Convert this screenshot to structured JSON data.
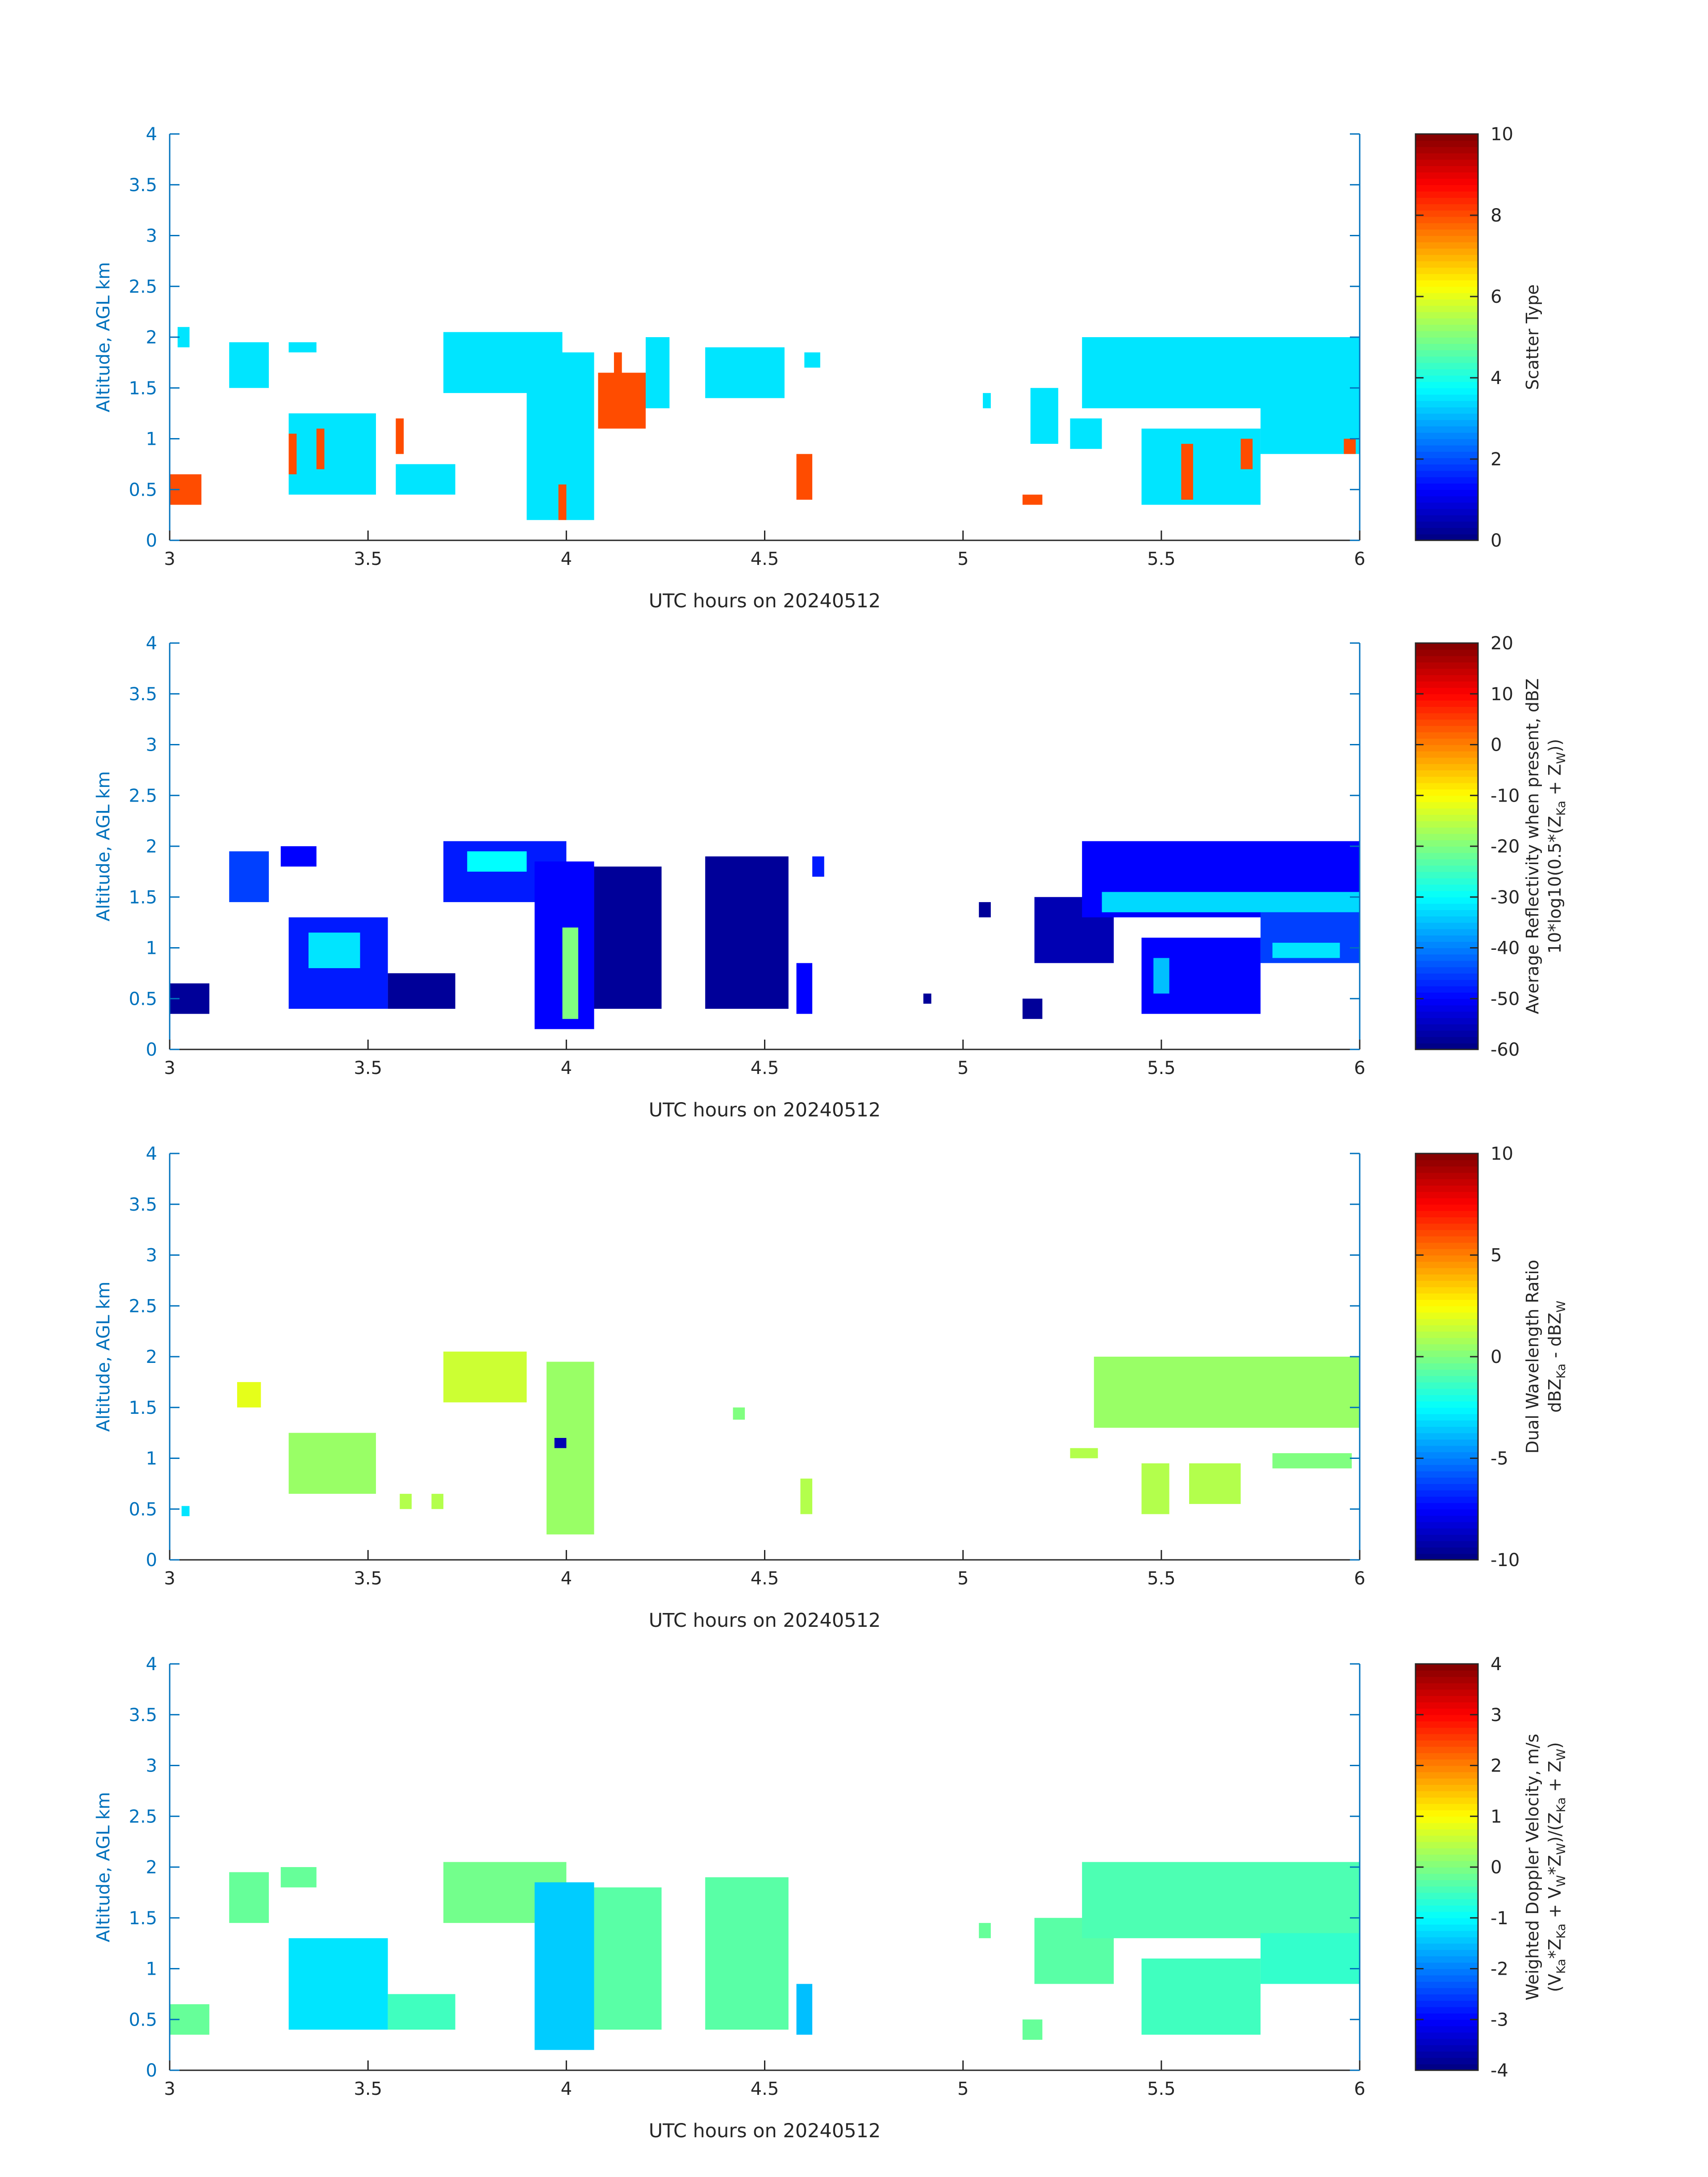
{
  "chart_data": [
    {
      "type": "heatmap",
      "panel": "scatter-type",
      "xlabel": "UTC hours on 20240512",
      "ylabel": "Altitude, AGL km",
      "xlim": [
        3,
        6
      ],
      "ylim": [
        0,
        4
      ],
      "xticks": [
        "3",
        "3.5",
        "4",
        "4.5",
        "5",
        "5.5",
        "6"
      ],
      "yticks": [
        "0",
        "0.5",
        "1",
        "1.5",
        "2",
        "2.5",
        "3",
        "3.5",
        "4"
      ],
      "colorbar": {
        "label": [
          "Scatter Type"
        ],
        "range": [
          0,
          10
        ],
        "ticks": [
          "0",
          "2",
          "4",
          "6",
          "8",
          "10"
        ]
      },
      "regions": [
        {
          "x": [
            3.0,
            3.08
          ],
          "y": [
            0.35,
            0.65
          ],
          "value": 8
        },
        {
          "x": [
            3.02,
            3.05
          ],
          "y": [
            1.9,
            2.1
          ],
          "value": 3.5
        },
        {
          "x": [
            3.15,
            3.25
          ],
          "y": [
            1.5,
            1.95
          ],
          "value": 3.5
        },
        {
          "x": [
            3.3,
            3.37
          ],
          "y": [
            1.85,
            1.95
          ],
          "value": 3.5
        },
        {
          "x": [
            3.3,
            3.52
          ],
          "y": [
            0.45,
            1.25
          ],
          "value": 3.5
        },
        {
          "x": [
            3.3,
            3.32
          ],
          "y": [
            0.65,
            1.05
          ],
          "value": 8
        },
        {
          "x": [
            3.37,
            3.39
          ],
          "y": [
            0.7,
            1.1
          ],
          "value": 8
        },
        {
          "x": [
            3.57,
            3.72
          ],
          "y": [
            0.45,
            0.75
          ],
          "value": 3.5
        },
        {
          "x": [
            3.57,
            3.59
          ],
          "y": [
            0.85,
            1.2
          ],
          "value": 8
        },
        {
          "x": [
            3.69,
            3.99
          ],
          "y": [
            1.45,
            2.05
          ],
          "value": 3.5
        },
        {
          "x": [
            3.9,
            4.07
          ],
          "y": [
            0.2,
            1.85
          ],
          "value": 3.5
        },
        {
          "x": [
            3.98,
            4.0
          ],
          "y": [
            0.2,
            0.55
          ],
          "value": 8
        },
        {
          "x": [
            4.12,
            4.14
          ],
          "y": [
            1.55,
            1.85
          ],
          "value": 8
        },
        {
          "x": [
            4.08,
            4.2
          ],
          "y": [
            1.1,
            1.65
          ],
          "value": 8
        },
        {
          "x": [
            4.2,
            4.26
          ],
          "y": [
            1.3,
            2.0
          ],
          "value": 3.5
        },
        {
          "x": [
            4.35,
            4.55
          ],
          "y": [
            1.4,
            1.9
          ],
          "value": 3.5
        },
        {
          "x": [
            4.58,
            4.62
          ],
          "y": [
            0.4,
            0.85
          ],
          "value": 8
        },
        {
          "x": [
            4.6,
            4.64
          ],
          "y": [
            1.7,
            1.85
          ],
          "value": 3.5
        },
        {
          "x": [
            5.05,
            5.07
          ],
          "y": [
            1.3,
            1.45
          ],
          "value": 3.5
        },
        {
          "x": [
            5.15,
            5.2
          ],
          "y": [
            0.35,
            0.45
          ],
          "value": 8
        },
        {
          "x": [
            5.17,
            5.24
          ],
          "y": [
            0.95,
            1.5
          ],
          "value": 3.5
        },
        {
          "x": [
            5.27,
            5.35
          ],
          "y": [
            0.9,
            1.2
          ],
          "value": 3.5
        },
        {
          "x": [
            5.3,
            6.0
          ],
          "y": [
            1.3,
            2.0
          ],
          "value": 3.5
        },
        {
          "x": [
            5.45,
            5.75
          ],
          "y": [
            0.35,
            1.1
          ],
          "value": 3.5
        },
        {
          "x": [
            5.55,
            5.58
          ],
          "y": [
            0.4,
            0.95
          ],
          "value": 8
        },
        {
          "x": [
            5.7,
            5.73
          ],
          "y": [
            0.7,
            1.0
          ],
          "value": 8
        },
        {
          "x": [
            5.75,
            6.0
          ],
          "y": [
            0.85,
            1.35
          ],
          "value": 3.5
        },
        {
          "x": [
            5.96,
            5.99
          ],
          "y": [
            0.85,
            1.0
          ],
          "value": 8
        }
      ]
    },
    {
      "type": "heatmap",
      "panel": "reflectivity",
      "xlabel": "UTC hours on 20240512",
      "ylabel": "Altitude, AGL km",
      "xlim": [
        3,
        6
      ],
      "ylim": [
        0,
        4
      ],
      "xticks": [
        "3",
        "3.5",
        "4",
        "4.5",
        "5",
        "5.5",
        "6"
      ],
      "yticks": [
        "0",
        "0.5",
        "1",
        "1.5",
        "2",
        "2.5",
        "3",
        "3.5",
        "4"
      ],
      "colorbar": {
        "label": [
          "Average Reflectivity when present, dBZ",
          "10*log10(0.5*(Z",
          "Ka",
          " + Z",
          "W",
          "))"
        ],
        "range": [
          -60,
          20
        ],
        "ticks": [
          "-60",
          "-50",
          "-40",
          "-30",
          "-20",
          "-10",
          "0",
          "10",
          "20"
        ]
      },
      "regions": [
        {
          "x": [
            3.0,
            3.1
          ],
          "y": [
            0.35,
            0.65
          ],
          "value": -58
        },
        {
          "x": [
            3.15,
            3.25
          ],
          "y": [
            1.45,
            1.95
          ],
          "value": -45
        },
        {
          "x": [
            3.28,
            3.37
          ],
          "y": [
            1.8,
            2.0
          ],
          "value": -50
        },
        {
          "x": [
            3.3,
            3.55
          ],
          "y": [
            0.4,
            1.3
          ],
          "value": -48
        },
        {
          "x": [
            3.35,
            3.48
          ],
          "y": [
            0.8,
            1.15
          ],
          "value": -32
        },
        {
          "x": [
            3.55,
            3.72
          ],
          "y": [
            0.4,
            0.75
          ],
          "value": -58
        },
        {
          "x": [
            3.69,
            4.0
          ],
          "y": [
            1.45,
            2.05
          ],
          "value": -48
        },
        {
          "x": [
            3.75,
            3.9
          ],
          "y": [
            1.75,
            1.95
          ],
          "value": -30
        },
        {
          "x": [
            3.92,
            4.07
          ],
          "y": [
            0.2,
            1.85
          ],
          "value": -50
        },
        {
          "x": [
            3.99,
            4.03
          ],
          "y": [
            0.3,
            1.2
          ],
          "value": -20
        },
        {
          "x": [
            4.07,
            4.24
          ],
          "y": [
            0.4,
            1.8
          ],
          "value": -58
        },
        {
          "x": [
            4.35,
            4.56
          ],
          "y": [
            0.4,
            1.9
          ],
          "value": -58
        },
        {
          "x": [
            4.58,
            4.62
          ],
          "y": [
            0.35,
            0.85
          ],
          "value": -50
        },
        {
          "x": [
            4.62,
            4.65
          ],
          "y": [
            1.7,
            1.9
          ],
          "value": -48
        },
        {
          "x": [
            4.9,
            4.92
          ],
          "y": [
            0.45,
            0.55
          ],
          "value": -58
        },
        {
          "x": [
            5.04,
            5.07
          ],
          "y": [
            1.3,
            1.45
          ],
          "value": -58
        },
        {
          "x": [
            5.15,
            5.2
          ],
          "y": [
            0.3,
            0.5
          ],
          "value": -58
        },
        {
          "x": [
            5.18,
            5.38
          ],
          "y": [
            0.85,
            1.5
          ],
          "value": -56
        },
        {
          "x": [
            5.3,
            6.0
          ],
          "y": [
            1.3,
            2.05
          ],
          "value": -50
        },
        {
          "x": [
            5.35,
            6.0
          ],
          "y": [
            1.35,
            1.55
          ],
          "value": -33
        },
        {
          "x": [
            5.45,
            5.75
          ],
          "y": [
            0.35,
            1.1
          ],
          "value": -50
        },
        {
          "x": [
            5.48,
            5.52
          ],
          "y": [
            0.55,
            0.9
          ],
          "value": -35
        },
        {
          "x": [
            5.75,
            6.0
          ],
          "y": [
            0.85,
            1.35
          ],
          "value": -45
        },
        {
          "x": [
            5.78,
            5.95
          ],
          "y": [
            0.9,
            1.05
          ],
          "value": -32
        }
      ]
    },
    {
      "type": "heatmap",
      "panel": "dual-wavelength-ratio",
      "xlabel": "UTC hours on 20240512",
      "ylabel": "Altitude, AGL km",
      "xlim": [
        3,
        6
      ],
      "ylim": [
        0,
        4
      ],
      "xticks": [
        "3",
        "3.5",
        "4",
        "4.5",
        "5",
        "5.5",
        "6"
      ],
      "yticks": [
        "0",
        "0.5",
        "1",
        "1.5",
        "2",
        "2.5",
        "3",
        "3.5",
        "4"
      ],
      "colorbar": {
        "label": [
          "Dual Wavelength Ratio",
          "dBZ",
          "Ka",
          " - dBZ",
          "W"
        ],
        "range": [
          -10,
          10
        ],
        "ticks": [
          "-10",
          "-5",
          "0",
          "5",
          "10"
        ]
      },
      "regions": [
        {
          "x": [
            3.03,
            3.05
          ],
          "y": [
            0.43,
            0.53
          ],
          "value": -3
        },
        {
          "x": [
            3.17,
            3.23
          ],
          "y": [
            1.5,
            1.75
          ],
          "value": 2
        },
        {
          "x": [
            3.3,
            3.52
          ],
          "y": [
            0.65,
            1.25
          ],
          "value": 0.5
        },
        {
          "x": [
            3.58,
            3.61
          ],
          "y": [
            0.5,
            0.65
          ],
          "value": 1
        },
        {
          "x": [
            3.66,
            3.69
          ],
          "y": [
            0.5,
            0.65
          ],
          "value": 1
        },
        {
          "x": [
            3.69,
            3.9
          ],
          "y": [
            1.55,
            2.05
          ],
          "value": 1.5
        },
        {
          "x": [
            3.95,
            4.07
          ],
          "y": [
            0.25,
            1.95
          ],
          "value": 0.5
        },
        {
          "x": [
            3.97,
            4.0
          ],
          "y": [
            1.1,
            1.2
          ],
          "value": -9
        },
        {
          "x": [
            4.42,
            4.45
          ],
          "y": [
            1.38,
            1.5
          ],
          "value": 0
        },
        {
          "x": [
            4.59,
            4.62
          ],
          "y": [
            0.45,
            0.8
          ],
          "value": 1
        },
        {
          "x": [
            5.27,
            5.34
          ],
          "y": [
            1.0,
            1.1
          ],
          "value": 1
        },
        {
          "x": [
            5.33,
            6.0
          ],
          "y": [
            1.3,
            2.0
          ],
          "value": 0.5
        },
        {
          "x": [
            5.45,
            5.52
          ],
          "y": [
            0.45,
            0.95
          ],
          "value": 1
        },
        {
          "x": [
            5.57,
            5.7
          ],
          "y": [
            0.55,
            0.95
          ],
          "value": 1
        },
        {
          "x": [
            5.78,
            5.98
          ],
          "y": [
            0.9,
            1.05
          ],
          "value": 0
        }
      ]
    },
    {
      "type": "heatmap",
      "panel": "doppler-velocity",
      "xlabel": "UTC hours on 20240512",
      "ylabel": "Altitude, AGL km",
      "xlim": [
        3,
        6
      ],
      "ylim": [
        0,
        4
      ],
      "xticks": [
        "3",
        "3.5",
        "4",
        "4.5",
        "5",
        "5.5",
        "6"
      ],
      "yticks": [
        "0",
        "0.5",
        "1",
        "1.5",
        "2",
        "2.5",
        "3",
        "3.5",
        "4"
      ],
      "colorbar": {
        "label": [
          "Weighted Doppler Velocity, m/s",
          "(V",
          "Ka",
          "*Z",
          "Ka",
          " + V",
          "W",
          "*Z",
          "W",
          ")/(Z",
          "Ka",
          " + Z",
          "W",
          ")"
        ],
        "range": [
          -4,
          4
        ],
        "ticks": [
          "-4",
          "-3",
          "-2",
          "-1",
          "0",
          "1",
          "2",
          "3",
          "4"
        ]
      },
      "regions": [
        {
          "x": [
            3.0,
            3.1
          ],
          "y": [
            0.35,
            0.65
          ],
          "value": -0.2
        },
        {
          "x": [
            3.15,
            3.25
          ],
          "y": [
            1.45,
            1.95
          ],
          "value": -0.2
        },
        {
          "x": [
            3.28,
            3.37
          ],
          "y": [
            1.8,
            2.0
          ],
          "value": -0.2
        },
        {
          "x": [
            3.3,
            3.55
          ],
          "y": [
            0.4,
            1.3
          ],
          "value": -1.2
        },
        {
          "x": [
            3.55,
            3.72
          ],
          "y": [
            0.4,
            0.75
          ],
          "value": -0.5
        },
        {
          "x": [
            3.69,
            4.0
          ],
          "y": [
            1.45,
            2.05
          ],
          "value": -0.1
        },
        {
          "x": [
            3.92,
            4.07
          ],
          "y": [
            0.2,
            1.85
          ],
          "value": -1.4
        },
        {
          "x": [
            4.07,
            4.24
          ],
          "y": [
            0.4,
            1.8
          ],
          "value": -0.3
        },
        {
          "x": [
            4.35,
            4.56
          ],
          "y": [
            0.4,
            1.9
          ],
          "value": -0.3
        },
        {
          "x": [
            4.58,
            4.62
          ],
          "y": [
            0.35,
            0.85
          ],
          "value": -1.5
        },
        {
          "x": [
            5.04,
            5.07
          ],
          "y": [
            1.3,
            1.45
          ],
          "value": -0.2
        },
        {
          "x": [
            5.15,
            5.2
          ],
          "y": [
            0.3,
            0.5
          ],
          "value": -0.2
        },
        {
          "x": [
            5.18,
            5.38
          ],
          "y": [
            0.85,
            1.5
          ],
          "value": -0.3
        },
        {
          "x": [
            5.3,
            6.0
          ],
          "y": [
            1.3,
            2.05
          ],
          "value": -0.4
        },
        {
          "x": [
            5.45,
            5.75
          ],
          "y": [
            0.35,
            1.1
          ],
          "value": -0.5
        },
        {
          "x": [
            5.75,
            6.0
          ],
          "y": [
            0.85,
            1.35
          ],
          "value": -0.6
        }
      ]
    }
  ]
}
